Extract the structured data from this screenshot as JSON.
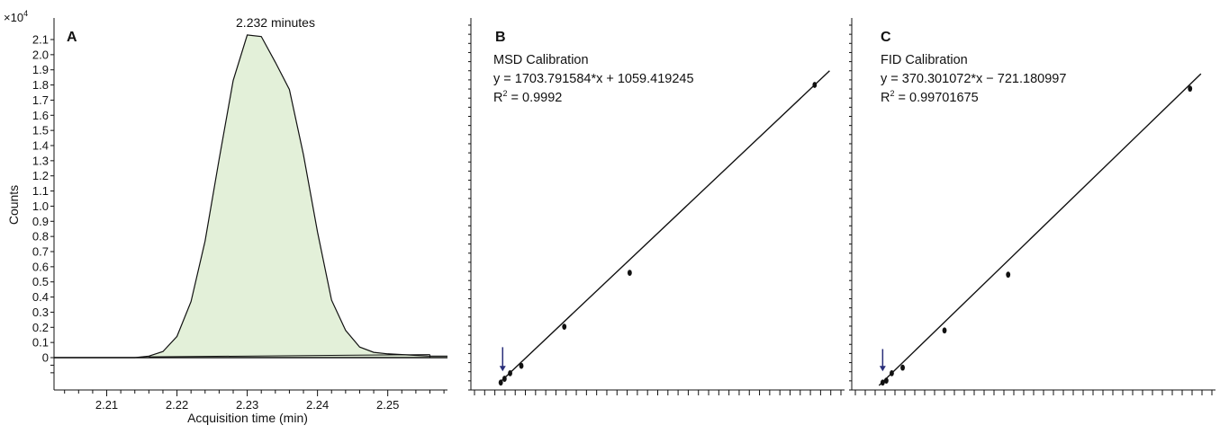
{
  "colors": {
    "peak_fill": "#e3f0d9",
    "line": "#111111",
    "arrow": "#2a2f7a"
  },
  "chart_data": [
    {
      "type": "area",
      "panel": "A",
      "annotation": "2.232 minutes",
      "ylabel": "Counts",
      "y_multiplier": "×10",
      "y_multiplier_exp": "4",
      "xlabel": "Acquisition time (min)",
      "xlim": [
        2.2025,
        2.2585
      ],
      "ylim": [
        -0.15,
        2.18
      ],
      "x_ticks": [
        2.21,
        2.22,
        2.23,
        2.24,
        2.25
      ],
      "x_tick_labels": [
        "2.21",
        "2.22",
        "2.23",
        "2.24",
        "2.25"
      ],
      "y_ticks": [
        0,
        0.1,
        0.2,
        0.3,
        0.4,
        0.5,
        0.6,
        0.7,
        0.8,
        0.9,
        1.0,
        1.1,
        1.2,
        1.3,
        1.4,
        1.5,
        1.6,
        1.7,
        1.8,
        1.9,
        2.0,
        2.1
      ],
      "y_tick_labels": [
        "0",
        "0.1",
        "0.2",
        "0.3",
        "0.4",
        "0.5",
        "0.6",
        "0.7",
        "0.8",
        "0.9",
        "1.0",
        "1.1",
        "1.2",
        "1.3",
        "1.4",
        "1.5",
        "1.6",
        "1.7",
        "1.8",
        "1.9",
        "2.0",
        "2.1"
      ],
      "x": [
        2.2025,
        2.214,
        2.216,
        2.218,
        2.22,
        2.222,
        2.224,
        2.226,
        2.228,
        2.23,
        2.232,
        2.234,
        2.236,
        2.238,
        2.24,
        2.242,
        2.244,
        2.246,
        2.248,
        2.25,
        2.252,
        2.254,
        2.256,
        2.2585
      ],
      "y": [
        0.0,
        0.0,
        0.01,
        0.04,
        0.14,
        0.37,
        0.77,
        1.31,
        1.83,
        2.13,
        2.12,
        1.95,
        1.77,
        1.34,
        0.83,
        0.38,
        0.18,
        0.07,
        0.035,
        0.025,
        0.02,
        0.015,
        0.01,
        0.01
      ],
      "baseline": {
        "x": [
          2.216,
          2.256
        ],
        "y": [
          0.005,
          0.02
        ]
      }
    },
    {
      "type": "scatter",
      "panel": "B",
      "title": "MSD Calibration",
      "eq_line1": "y = 1703.791584*x  + 1059.419245",
      "r2_base": "R",
      "r2_sup": "2",
      "r2_value": " = 0.9992",
      "xlim": [
        0,
        1
      ],
      "ylim": [
        0,
        1
      ],
      "points": [
        {
          "x": 0.08,
          "y": 0.02
        },
        {
          "x": 0.09,
          "y": 0.03
        },
        {
          "x": 0.105,
          "y": 0.045
        },
        {
          "x": 0.135,
          "y": 0.065
        },
        {
          "x": 0.25,
          "y": 0.17
        },
        {
          "x": 0.425,
          "y": 0.315
        },
        {
          "x": 0.92,
          "y": 0.82
        }
      ],
      "fit": {
        "x": [
          0.075,
          0.96
        ],
        "y": [
          0.018,
          0.858
        ]
      },
      "arrow": {
        "x": 0.085,
        "y_top": 0.115,
        "y_bottom": 0.05
      },
      "x_tick_count": 36
    },
    {
      "type": "scatter",
      "panel": "C",
      "title": "FID Calibration",
      "eq_line1": "y = 370.301072*x  − 721.180997",
      "r2_base": "R",
      "r2_sup": "2",
      "r2_value": " = 0.99701675",
      "xlim": [
        0,
        1
      ],
      "ylim": [
        0,
        1
      ],
      "points": [
        {
          "x": 0.085,
          "y": 0.02
        },
        {
          "x": 0.095,
          "y": 0.025
        },
        {
          "x": 0.11,
          "y": 0.045
        },
        {
          "x": 0.14,
          "y": 0.06
        },
        {
          "x": 0.255,
          "y": 0.16
        },
        {
          "x": 0.43,
          "y": 0.31
        },
        {
          "x": 0.93,
          "y": 0.81
        }
      ],
      "fit": {
        "x": [
          0.075,
          0.96
        ],
        "y": [
          0.012,
          0.85
        ]
      },
      "arrow": {
        "x": 0.085,
        "y_top": 0.11,
        "y_bottom": 0.05
      },
      "x_tick_count": 36
    }
  ]
}
